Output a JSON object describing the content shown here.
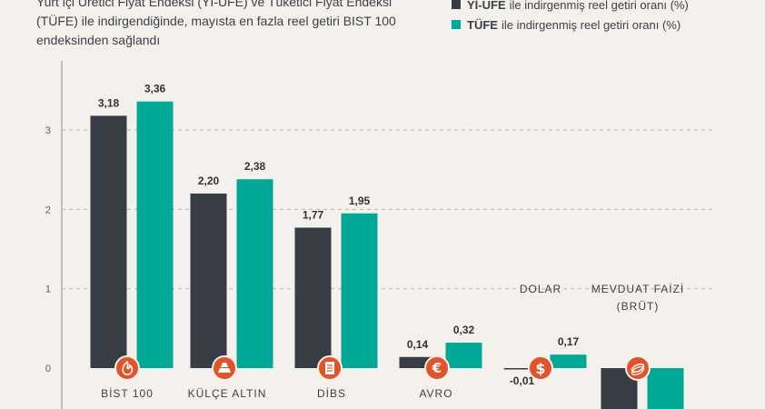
{
  "subtitle": "Yurt içi Üretici Fiyat Endeksi (Yİ-ÜFE) ve Tüketici Fiyat Endeksi (TÜFE) ile indirgendiğinde, mayısta en fazla reel getiri BIST 100 endeksinden sağlandı",
  "legend": [
    {
      "key": "Yİ-ÜFE",
      "text": "ile indirgenmiş reel getiri oranı (%)",
      "color": "#383c45"
    },
    {
      "key": "TÜFE",
      "text": "ile indirgenmiş reel getiri oranı (%)",
      "color": "#00a896"
    }
  ],
  "chart_data": {
    "type": "bar",
    "categories": [
      "BİST 100",
      "KÜLÇE ALTIN",
      "DİBS",
      "AVRO",
      "DOLAR",
      "MEVDUAT FAİZİ (BRÜT)"
    ],
    "category_icons": [
      "fire-icon",
      "gold-bar-icon",
      "document-icon",
      "euro-icon",
      "dollar-icon",
      "coin-stack-icon"
    ],
    "series": [
      {
        "name": "Yİ-ÜFE",
        "color": "#383c45",
        "values": [
          3.18,
          2.2,
          1.77,
          0.14,
          -0.01,
          null
        ],
        "labels": [
          "3,18",
          "2,20",
          "1,77",
          "0,14",
          "-0,01",
          ""
        ]
      },
      {
        "name": "TÜFE",
        "color": "#00a896",
        "values": [
          3.36,
          2.38,
          1.95,
          0.32,
          0.17,
          null
        ],
        "labels": [
          "3,36",
          "2,38",
          "1,95",
          "0,32",
          "0,17",
          ""
        ]
      }
    ],
    "yticks": [
      0,
      1,
      2,
      3
    ],
    "ytick_labels": [
      "0",
      "1",
      "2",
      "3"
    ],
    "ylim": [
      -0.6,
      3.75
    ],
    "icon_color": "#e2532a"
  }
}
